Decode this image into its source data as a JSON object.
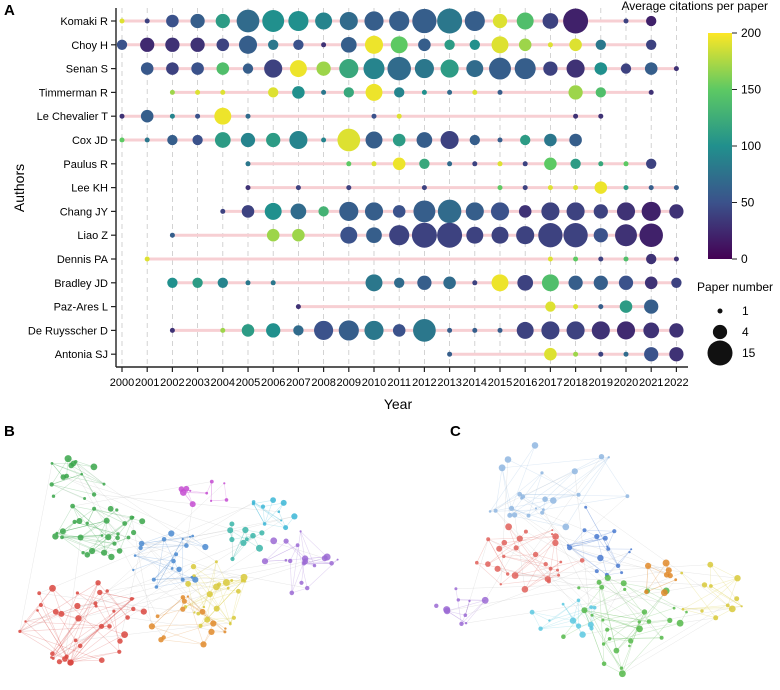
{
  "panels": {
    "a": "A",
    "b": "B",
    "c": "C"
  },
  "chart_data": {
    "type": "scatter",
    "title": "",
    "xlabel": "Year",
    "ylabel": "Authors",
    "x": [
      2000,
      2001,
      2002,
      2003,
      2004,
      2005,
      2006,
      2007,
      2008,
      2009,
      2010,
      2011,
      2012,
      2013,
      2014,
      2015,
      2016,
      2017,
      2018,
      2019,
      2020,
      2021,
      2022
    ],
    "xlim": [
      2000,
      2022
    ],
    "authors": [
      "Komaki R",
      "Choy H",
      "Senan S",
      "Timmerman R",
      "Le Chevalier T",
      "Cox JD",
      "Paulus R",
      "Lee KH",
      "Chang JY",
      "Liao Z",
      "Dennis PA",
      "Bradley JD",
      "Paz-Ares L",
      "De Ruysscher D",
      "Antonia SJ"
    ],
    "color_legend": {
      "title": "Average citations per paper",
      "min": 0,
      "max": 200,
      "ticks": [
        0,
        50,
        100,
        150,
        200
      ]
    },
    "size_legend": {
      "title": "Paper number",
      "values": [
        1,
        4,
        15
      ]
    },
    "series": [
      {
        "name": "Komaki R",
        "points": [
          [
            2000,
            1,
            190
          ],
          [
            2001,
            1,
            40
          ],
          [
            2002,
            3,
            50
          ],
          [
            2003,
            4,
            60
          ],
          [
            2004,
            4,
            110
          ],
          [
            2005,
            12,
            70
          ],
          [
            2006,
            11,
            100
          ],
          [
            2007,
            9,
            100
          ],
          [
            2008,
            6,
            90
          ],
          [
            2009,
            7,
            70
          ],
          [
            2010,
            8,
            60
          ],
          [
            2011,
            9,
            60
          ],
          [
            2012,
            14,
            60
          ],
          [
            2013,
            15,
            80
          ],
          [
            2014,
            9,
            60
          ],
          [
            2015,
            4,
            190
          ],
          [
            2016,
            6,
            140
          ],
          [
            2017,
            5,
            40
          ],
          [
            2018,
            15,
            20
          ],
          [
            2020,
            1,
            40
          ],
          [
            2021,
            2,
            20
          ]
        ]
      },
      {
        "name": "Choy H",
        "points": [
          [
            2000,
            2,
            50
          ],
          [
            2001,
            4,
            25
          ],
          [
            2002,
            4,
            30
          ],
          [
            2003,
            4,
            30
          ],
          [
            2004,
            3,
            40
          ],
          [
            2005,
            7,
            60
          ],
          [
            2006,
            2,
            80
          ],
          [
            2007,
            2,
            50
          ],
          [
            2008,
            1,
            30
          ],
          [
            2009,
            5,
            60
          ],
          [
            2010,
            7,
            195
          ],
          [
            2011,
            6,
            150
          ],
          [
            2012,
            3,
            60
          ],
          [
            2013,
            2,
            110
          ],
          [
            2014,
            2,
            100
          ],
          [
            2015,
            6,
            190
          ],
          [
            2016,
            3,
            170
          ],
          [
            2017,
            1,
            190
          ],
          [
            2018,
            3,
            190
          ],
          [
            2019,
            2,
            80
          ],
          [
            2021,
            2,
            40
          ]
        ]
      },
      {
        "name": "Senan S",
        "points": [
          [
            2001,
            3,
            55
          ],
          [
            2002,
            3,
            40
          ],
          [
            2003,
            3,
            50
          ],
          [
            2004,
            3,
            140
          ],
          [
            2005,
            2,
            60
          ],
          [
            2006,
            7,
            40
          ],
          [
            2007,
            6,
            195
          ],
          [
            2008,
            4,
            170
          ],
          [
            2009,
            8,
            120
          ],
          [
            2010,
            10,
            90
          ],
          [
            2011,
            13,
            70
          ],
          [
            2012,
            8,
            80
          ],
          [
            2013,
            7,
            110
          ],
          [
            2014,
            6,
            70
          ],
          [
            2015,
            11,
            60
          ],
          [
            2016,
            10,
            60
          ],
          [
            2017,
            4,
            40
          ],
          [
            2018,
            7,
            30
          ],
          [
            2019,
            3,
            100
          ],
          [
            2020,
            2,
            40
          ],
          [
            2021,
            3,
            60
          ],
          [
            2022,
            1,
            30
          ]
        ]
      },
      {
        "name": "Timmerman R",
        "points": [
          [
            2002,
            1,
            170
          ],
          [
            2003,
            1,
            190
          ],
          [
            2004,
            1,
            190
          ],
          [
            2006,
            2,
            190
          ],
          [
            2007,
            3,
            100
          ],
          [
            2008,
            1,
            80
          ],
          [
            2009,
            2,
            120
          ],
          [
            2010,
            6,
            195
          ],
          [
            2011,
            2,
            90
          ],
          [
            2012,
            1,
            100
          ],
          [
            2013,
            1,
            70
          ],
          [
            2014,
            1,
            190
          ],
          [
            2015,
            1,
            60
          ],
          [
            2018,
            4,
            170
          ],
          [
            2019,
            2,
            140
          ],
          [
            2021,
            1,
            30
          ]
        ]
      },
      {
        "name": "Le Chevalier T",
        "points": [
          [
            2000,
            1,
            30
          ],
          [
            2001,
            3,
            60
          ],
          [
            2002,
            1,
            90
          ],
          [
            2003,
            1,
            50
          ],
          [
            2004,
            6,
            195
          ],
          [
            2005,
            1,
            70
          ],
          [
            2010,
            1,
            50
          ],
          [
            2011,
            1,
            190
          ],
          [
            2018,
            1,
            30
          ],
          [
            2019,
            1,
            30
          ]
        ]
      },
      {
        "name": "Cox JD",
        "points": [
          [
            2000,
            1,
            150
          ],
          [
            2001,
            1,
            80
          ],
          [
            2002,
            2,
            60
          ],
          [
            2003,
            2,
            50
          ],
          [
            2004,
            5,
            110
          ],
          [
            2005,
            4,
            90
          ],
          [
            2006,
            4,
            110
          ],
          [
            2007,
            7,
            90
          ],
          [
            2008,
            1,
            90
          ],
          [
            2009,
            12,
            190
          ],
          [
            2010,
            6,
            60
          ],
          [
            2011,
            3,
            110
          ],
          [
            2012,
            5,
            60
          ],
          [
            2013,
            7,
            40
          ],
          [
            2014,
            2,
            60
          ],
          [
            2015,
            1,
            60
          ],
          [
            2016,
            2,
            110
          ],
          [
            2017,
            3,
            80
          ],
          [
            2018,
            3,
            60
          ]
        ]
      },
      {
        "name": "Paulus R",
        "points": [
          [
            2005,
            1,
            80
          ],
          [
            2009,
            1,
            150
          ],
          [
            2010,
            1,
            190
          ],
          [
            2011,
            3,
            195
          ],
          [
            2012,
            2,
            120
          ],
          [
            2013,
            1,
            70
          ],
          [
            2014,
            1,
            40
          ],
          [
            2015,
            1,
            190
          ],
          [
            2016,
            1,
            40
          ],
          [
            2017,
            3,
            150
          ],
          [
            2018,
            2,
            110
          ],
          [
            2019,
            1,
            120
          ],
          [
            2020,
            1,
            150
          ],
          [
            2021,
            2,
            40
          ]
        ]
      },
      {
        "name": "Lee KH",
        "points": [
          [
            2005,
            1,
            30
          ],
          [
            2007,
            1,
            40
          ],
          [
            2009,
            1,
            40
          ],
          [
            2012,
            1,
            40
          ],
          [
            2015,
            1,
            150
          ],
          [
            2016,
            1,
            40
          ],
          [
            2017,
            1,
            190
          ],
          [
            2018,
            1,
            190
          ],
          [
            2019,
            3,
            195
          ],
          [
            2020,
            1,
            110
          ],
          [
            2021,
            1,
            60
          ],
          [
            2022,
            1,
            60
          ]
        ]
      },
      {
        "name": "Chang JY",
        "points": [
          [
            2004,
            1,
            40
          ],
          [
            2005,
            3,
            40
          ],
          [
            2006,
            6,
            100
          ],
          [
            2007,
            5,
            70
          ],
          [
            2008,
            2,
            130
          ],
          [
            2009,
            8,
            60
          ],
          [
            2010,
            7,
            60
          ],
          [
            2011,
            3,
            50
          ],
          [
            2012,
            11,
            60
          ],
          [
            2013,
            13,
            70
          ],
          [
            2014,
            7,
            60
          ],
          [
            2015,
            7,
            50
          ],
          [
            2016,
            3,
            30
          ],
          [
            2017,
            7,
            40
          ],
          [
            2018,
            7,
            40
          ],
          [
            2019,
            4,
            40
          ],
          [
            2020,
            7,
            30
          ],
          [
            2021,
            8,
            20
          ],
          [
            2022,
            4,
            30
          ]
        ]
      },
      {
        "name": "Liao Z",
        "points": [
          [
            2002,
            1,
            60
          ],
          [
            2006,
            3,
            170
          ],
          [
            2007,
            3,
            170
          ],
          [
            2009,
            6,
            50
          ],
          [
            2010,
            5,
            60
          ],
          [
            2011,
            9,
            40
          ],
          [
            2012,
            15,
            40
          ],
          [
            2013,
            15,
            40
          ],
          [
            2014,
            6,
            40
          ],
          [
            2015,
            6,
            40
          ],
          [
            2016,
            7,
            40
          ],
          [
            2017,
            14,
            40
          ],
          [
            2018,
            14,
            40
          ],
          [
            2019,
            4,
            50
          ],
          [
            2020,
            11,
            30
          ],
          [
            2021,
            13,
            20
          ]
        ]
      },
      {
        "name": "Dennis PA",
        "points": [
          [
            2001,
            1,
            190
          ],
          [
            2017,
            1,
            190
          ],
          [
            2018,
            1,
            150
          ],
          [
            2019,
            1,
            40
          ],
          [
            2020,
            1,
            140
          ],
          [
            2021,
            2,
            30
          ],
          [
            2022,
            1,
            30
          ]
        ]
      },
      {
        "name": "Bradley JD",
        "points": [
          [
            2002,
            2,
            100
          ],
          [
            2003,
            2,
            110
          ],
          [
            2004,
            2,
            90
          ],
          [
            2005,
            1,
            80
          ],
          [
            2006,
            1,
            80
          ],
          [
            2010,
            6,
            80
          ],
          [
            2011,
            2,
            70
          ],
          [
            2012,
            4,
            60
          ],
          [
            2013,
            3,
            70
          ],
          [
            2014,
            1,
            40
          ],
          [
            2015,
            6,
            195
          ],
          [
            2016,
            5,
            40
          ],
          [
            2017,
            6,
            140
          ],
          [
            2018,
            4,
            60
          ],
          [
            2019,
            4,
            60
          ],
          [
            2020,
            4,
            50
          ],
          [
            2021,
            3,
            30
          ],
          [
            2022,
            2,
            40
          ]
        ]
      },
      {
        "name": "Paz-Ares L",
        "points": [
          [
            2007,
            1,
            30
          ],
          [
            2017,
            2,
            190
          ],
          [
            2018,
            1,
            190
          ],
          [
            2019,
            1,
            60
          ],
          [
            2020,
            3,
            110
          ],
          [
            2021,
            4,
            60
          ]
        ]
      },
      {
        "name": "De Ruysscher D",
        "points": [
          [
            2002,
            1,
            30
          ],
          [
            2004,
            1,
            170
          ],
          [
            2005,
            3,
            110
          ],
          [
            2006,
            4,
            100
          ],
          [
            2007,
            2,
            70
          ],
          [
            2008,
            8,
            50
          ],
          [
            2009,
            9,
            60
          ],
          [
            2010,
            8,
            80
          ],
          [
            2011,
            3,
            50
          ],
          [
            2012,
            12,
            80
          ],
          [
            2013,
            1,
            60
          ],
          [
            2014,
            1,
            60
          ],
          [
            2015,
            1,
            60
          ],
          [
            2016,
            6,
            40
          ],
          [
            2017,
            7,
            40
          ],
          [
            2018,
            7,
            40
          ],
          [
            2019,
            7,
            30
          ],
          [
            2020,
            7,
            25
          ],
          [
            2021,
            5,
            30
          ],
          [
            2022,
            4,
            30
          ]
        ]
      },
      {
        "name": "Antonia SJ",
        "points": [
          [
            2013,
            1,
            60
          ],
          [
            2017,
            3,
            190
          ],
          [
            2018,
            1,
            170
          ],
          [
            2019,
            1,
            40
          ],
          [
            2020,
            1,
            70
          ],
          [
            2021,
            4,
            50
          ],
          [
            2022,
            4,
            30
          ]
        ]
      }
    ]
  }
}
